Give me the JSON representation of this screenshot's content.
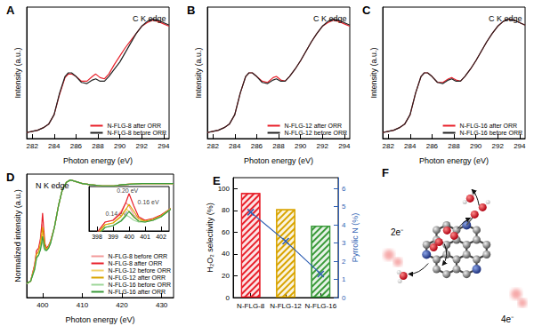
{
  "chart_data": [
    {
      "panel": "A",
      "type": "line",
      "title": "C K edge",
      "x_label": "Photon energy (eV)",
      "y_label": "Intensity (a.u.)",
      "x": [
        281.5,
        282,
        282.5,
        283,
        283.5,
        284,
        284.5,
        285,
        285.3,
        285.6,
        286,
        286.5,
        287,
        287.5,
        287.8,
        288.2,
        288.6,
        289,
        289.5,
        290,
        290.5,
        291,
        291.5,
        292,
        292.5,
        293,
        293.5,
        294,
        294.5
      ],
      "xlim": [
        281.5,
        294.5
      ],
      "xticks": [
        282,
        284,
        286,
        288,
        290,
        292,
        294
      ],
      "ylim": [
        0,
        1.1
      ],
      "tick_labels": "x",
      "legend": "lower right",
      "series": [
        {
          "name": "N-FLG-8 after ORR",
          "color": "#e8202a",
          "values": [
            0.05,
            0.06,
            0.07,
            0.09,
            0.12,
            0.2,
            0.37,
            0.51,
            0.54,
            0.54,
            0.52,
            0.48,
            0.48,
            0.52,
            0.54,
            0.51,
            0.5,
            0.54,
            0.62,
            0.69,
            0.76,
            0.82,
            0.88,
            0.94,
            0.97,
            0.99,
            0.98,
            0.96,
            0.94
          ]
        },
        {
          "name": "N-FLG-8 before ORR",
          "color": "#222222",
          "values": [
            0.05,
            0.06,
            0.07,
            0.09,
            0.12,
            0.2,
            0.38,
            0.52,
            0.55,
            0.55,
            0.52,
            0.47,
            0.46,
            0.49,
            0.5,
            0.48,
            0.48,
            0.52,
            0.58,
            0.64,
            0.72,
            0.8,
            0.88,
            0.94,
            0.98,
            1.0,
            0.99,
            0.97,
            0.95
          ]
        }
      ]
    },
    {
      "panel": "B",
      "type": "line",
      "title": "C K edge",
      "x_label": "Photon energy (eV)",
      "y_label": "Intensity (a.u.)",
      "x": [
        281.5,
        282,
        282.5,
        283,
        283.5,
        284,
        284.5,
        285,
        285.3,
        285.6,
        286,
        286.5,
        287,
        287.5,
        287.8,
        288.2,
        288.6,
        289,
        289.5,
        290,
        290.5,
        291,
        291.5,
        292,
        292.5,
        293,
        293.5,
        294,
        294.5
      ],
      "xlim": [
        281.5,
        294.5
      ],
      "xticks": [
        282,
        284,
        286,
        288,
        290,
        292,
        294
      ],
      "ylim": [
        0,
        1.1
      ],
      "tick_labels": "x",
      "legend": "lower right",
      "series": [
        {
          "name": "N-FLG-12 after ORR",
          "color": "#e8202a",
          "values": [
            0.05,
            0.06,
            0.07,
            0.09,
            0.12,
            0.2,
            0.38,
            0.52,
            0.55,
            0.55,
            0.52,
            0.48,
            0.47,
            0.51,
            0.52,
            0.49,
            0.48,
            0.52,
            0.58,
            0.65,
            0.73,
            0.81,
            0.88,
            0.94,
            0.97,
            0.99,
            0.98,
            0.96,
            0.94
          ]
        },
        {
          "name": "N-FLG-12 before ORR",
          "color": "#222222",
          "values": [
            0.05,
            0.06,
            0.07,
            0.09,
            0.12,
            0.2,
            0.38,
            0.52,
            0.55,
            0.55,
            0.52,
            0.47,
            0.46,
            0.49,
            0.5,
            0.48,
            0.48,
            0.52,
            0.58,
            0.65,
            0.73,
            0.81,
            0.88,
            0.94,
            0.98,
            1.0,
            0.99,
            0.97,
            0.95
          ]
        }
      ]
    },
    {
      "panel": "C",
      "type": "line",
      "title": "C K edge",
      "x_label": "Photon energy (eV)",
      "y_label": "Intensity (a.u.)",
      "x": [
        281.5,
        282,
        282.5,
        283,
        283.5,
        284,
        284.5,
        285,
        285.3,
        285.6,
        286,
        286.5,
        287,
        287.5,
        287.8,
        288.2,
        288.6,
        289,
        289.5,
        290,
        290.5,
        291,
        291.5,
        292,
        292.5,
        293,
        293.5,
        294,
        294.5
      ],
      "xlim": [
        281.5,
        294.5
      ],
      "xticks": [
        282,
        284,
        286,
        288,
        290,
        292,
        294
      ],
      "ylim": [
        0,
        1.1
      ],
      "tick_labels": "x",
      "legend": "lower right",
      "series": [
        {
          "name": "N-FLG-16 after ORR",
          "color": "#e8202a",
          "values": [
            0.05,
            0.06,
            0.07,
            0.09,
            0.12,
            0.2,
            0.38,
            0.52,
            0.55,
            0.55,
            0.52,
            0.47,
            0.47,
            0.5,
            0.51,
            0.49,
            0.48,
            0.52,
            0.58,
            0.65,
            0.73,
            0.81,
            0.88,
            0.94,
            0.98,
            1.0,
            0.99,
            0.97,
            0.95
          ]
        },
        {
          "name": "N-FLG-16 before ORR",
          "color": "#222222",
          "values": [
            0.05,
            0.06,
            0.07,
            0.09,
            0.12,
            0.2,
            0.38,
            0.52,
            0.55,
            0.55,
            0.52,
            0.47,
            0.46,
            0.49,
            0.5,
            0.48,
            0.48,
            0.52,
            0.58,
            0.65,
            0.73,
            0.81,
            0.88,
            0.94,
            0.98,
            1.0,
            0.99,
            0.97,
            0.95
          ]
        }
      ]
    },
    {
      "panel": "D",
      "type": "line",
      "title": "N K edge",
      "x_label": "Photon energy (eV)",
      "y_label": "Normalized intensity (a.u.)",
      "x": [
        396,
        397,
        398,
        398.5,
        399,
        399.5,
        399.8,
        400,
        400.3,
        400.6,
        401,
        401.5,
        402,
        403,
        404,
        405,
        406,
        407,
        408,
        410,
        412,
        415,
        418,
        420,
        425,
        430,
        433
      ],
      "xlim": [
        396,
        433
      ],
      "xticks": [
        400,
        410,
        420,
        430
      ],
      "ylim": [
        0,
        1.05
      ],
      "tick_labels": "x",
      "legend": "lower right",
      "series": [
        {
          "name": "N-FLG-8 before ORR",
          "color": "#f29a9a",
          "values": [
            0.12,
            0.14,
            0.28,
            0.4,
            0.42,
            0.52,
            0.62,
            0.58,
            0.48,
            0.44,
            0.42,
            0.44,
            0.48,
            0.6,
            0.78,
            0.92,
            0.98,
            1.0,
            0.99,
            0.97,
            0.96,
            0.95,
            0.95,
            0.96,
            0.97,
            0.97,
            0.97
          ]
        },
        {
          "name": "N-FLG-8 after ORR",
          "color": "#e8202a",
          "values": [
            0.12,
            0.14,
            0.28,
            0.4,
            0.42,
            0.5,
            0.62,
            0.72,
            0.58,
            0.46,
            0.42,
            0.44,
            0.48,
            0.6,
            0.78,
            0.92,
            0.98,
            1.0,
            0.99,
            0.97,
            0.96,
            0.95,
            0.95,
            0.96,
            0.97,
            0.97,
            0.97
          ]
        },
        {
          "name": "N-FLG-12 before ORR",
          "color": "#f2d26a",
          "values": [
            0.12,
            0.14,
            0.26,
            0.37,
            0.39,
            0.47,
            0.55,
            0.52,
            0.45,
            0.42,
            0.41,
            0.43,
            0.47,
            0.6,
            0.78,
            0.92,
            0.98,
            1.0,
            0.99,
            0.97,
            0.96,
            0.95,
            0.95,
            0.96,
            0.97,
            0.97,
            0.97
          ]
        },
        {
          "name": "N-FLG-12 after ORR",
          "color": "#d9a400",
          "values": [
            0.12,
            0.14,
            0.26,
            0.37,
            0.39,
            0.46,
            0.54,
            0.6,
            0.52,
            0.44,
            0.41,
            0.43,
            0.47,
            0.6,
            0.78,
            0.92,
            0.98,
            1.0,
            0.99,
            0.97,
            0.96,
            0.95,
            0.95,
            0.96,
            0.97,
            0.97,
            0.97
          ]
        },
        {
          "name": "N-FLG-16 before ORR",
          "color": "#9ed69a",
          "values": [
            0.12,
            0.14,
            0.24,
            0.34,
            0.36,
            0.42,
            0.48,
            0.46,
            0.42,
            0.4,
            0.4,
            0.42,
            0.46,
            0.6,
            0.78,
            0.92,
            0.98,
            1.0,
            0.99,
            0.97,
            0.96,
            0.95,
            0.95,
            0.96,
            0.97,
            0.97,
            0.97
          ]
        },
        {
          "name": "N-FLG-16 after ORR",
          "color": "#3a9a3a",
          "values": [
            0.12,
            0.14,
            0.24,
            0.34,
            0.36,
            0.41,
            0.47,
            0.52,
            0.46,
            0.41,
            0.4,
            0.42,
            0.46,
            0.6,
            0.78,
            0.92,
            0.98,
            1.0,
            0.99,
            0.97,
            0.96,
            0.95,
            0.95,
            0.96,
            0.97,
            0.97,
            0.97
          ]
        }
      ],
      "inset": {
        "xlim": [
          397.5,
          402.5
        ],
        "xticks": [
          398,
          399,
          400,
          401,
          402
        ],
        "ylim": [
          0.3,
          0.8
        ],
        "annotations": [
          {
            "text": "0.20 eV",
            "x": 399.9,
            "y": 0.76
          },
          {
            "text": "0.16 eV",
            "x": 401.2,
            "y": 0.63
          },
          {
            "text": "0.14 eV",
            "x": 399.2,
            "y": 0.5
          }
        ]
      }
    },
    {
      "panel": "E",
      "type": "bar",
      "y_label": "H₂O₂ selectivity (%)",
      "y2_label": "Pyrrolic N (%)",
      "categories": [
        "N-FLG-8",
        "N-FLG-12",
        "N-FLG-16"
      ],
      "ylim": [
        0,
        110
      ],
      "yticks": [
        0,
        20,
        40,
        60,
        80,
        100
      ],
      "y2lim": [
        0,
        6.6
      ],
      "y2ticks": [
        0,
        1,
        2,
        3,
        4,
        5,
        6
      ],
      "series": [
        {
          "type": "bar",
          "colors": [
            "#e8202a",
            "#d9a400",
            "#3a9a3a"
          ],
          "values": [
            96,
            81,
            66
          ]
        },
        {
          "type": "line",
          "axis": "y2",
          "color": "#2f5fb3",
          "marker": "cross",
          "values": [
            4.7,
            3.1,
            1.3
          ]
        }
      ]
    },
    {
      "panel": "F",
      "type": "diagram",
      "labels": [
        "2e⁻",
        "4e⁻"
      ]
    }
  ]
}
